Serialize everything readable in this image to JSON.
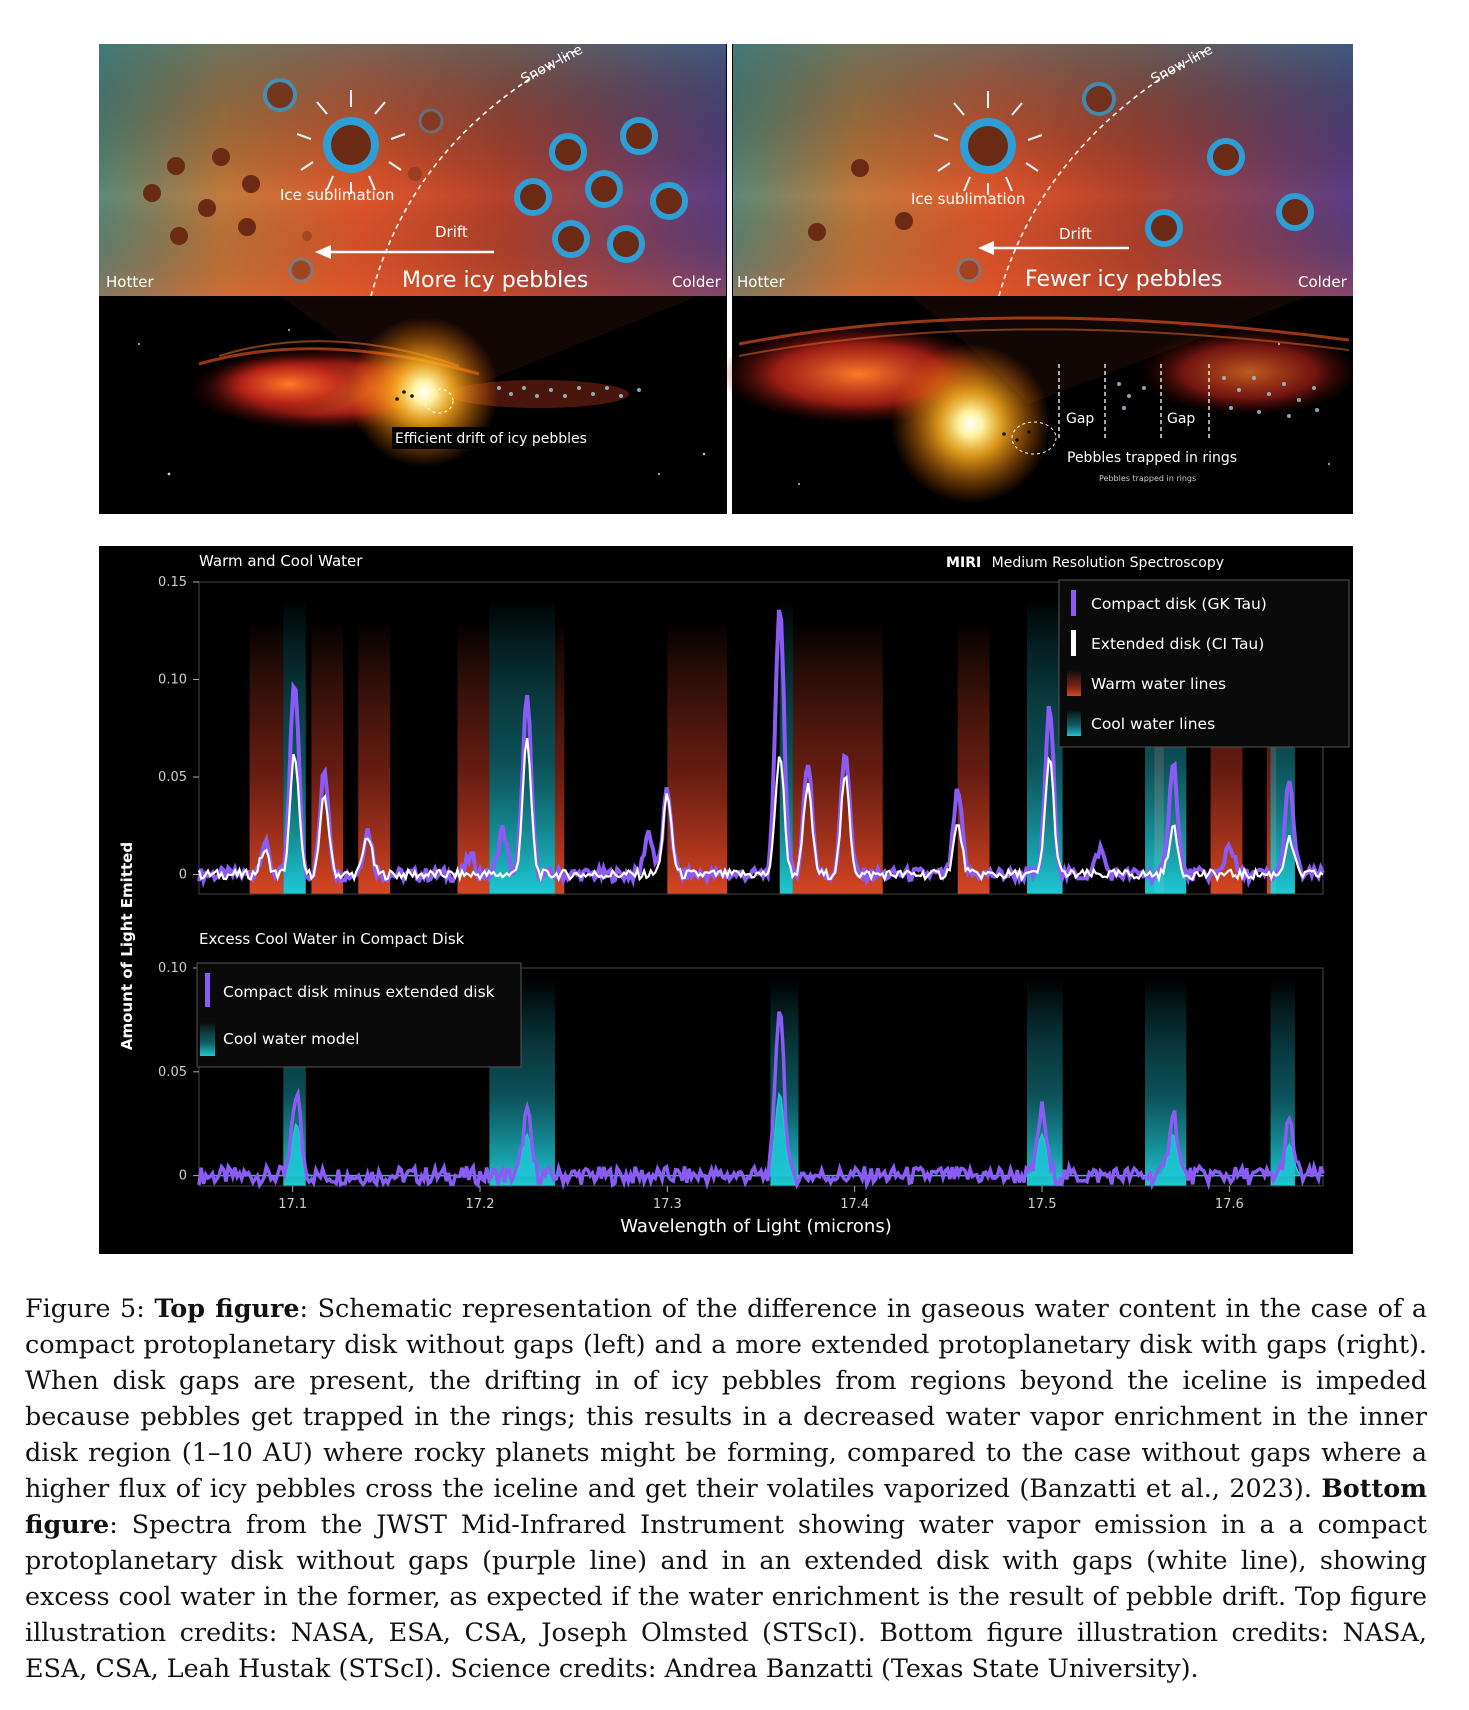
{
  "top_figure": {
    "left": {
      "snow_line": "Snow line",
      "ice_sublimation": "Ice sublimation",
      "drift": "Drift",
      "hotter": "Hotter",
      "colder": "Colder",
      "pebbles": "More icy pebbles",
      "drift_label": "Efficient drift of icy pebbles"
    },
    "right": {
      "snow_line": "Snow line",
      "ice_sublimation": "Ice sublimation",
      "drift": "Drift",
      "hotter": "Hotter",
      "colder": "Colder",
      "pebbles": "Fewer icy pebbles",
      "gap1": "Gap",
      "gap2": "Gap",
      "trapped_label": "Pebbles trapped in rings",
      "trapped_small": "Pebbles trapped in rings"
    },
    "colors": {
      "warm": "#d8472a",
      "cool_ring": "#2d9fd6",
      "pebble": "#6a2a14"
    }
  },
  "chart_data": [
    {
      "type": "line",
      "title": "Warm and Cool Water",
      "instrument_bold": "MIRI",
      "instrument_rest": "Medium Resolution Spectroscopy",
      "ylabel": "Amount of Light Emitted",
      "ylim": [
        -0.01,
        0.15
      ],
      "xlim": [
        17.05,
        17.65
      ],
      "yticks": [
        {
          "v": 0,
          "label": "0"
        },
        {
          "v": 0.05,
          "label": "0.05"
        },
        {
          "v": 0.1,
          "label": "0.10"
        },
        {
          "v": 0.15,
          "label": "0.15"
        }
      ],
      "legend": [
        {
          "label": "Compact disk (GK Tau)",
          "color": "#8a5cf5"
        },
        {
          "label": "Extended disk (CI Tau)",
          "color": "#ffffff"
        },
        {
          "label": "Warm water lines",
          "color": "#d8472a"
        },
        {
          "label": "Cool water lines",
          "color": "#1fc7d4"
        }
      ],
      "warm_bands": [
        [
          17.077,
          17.095
        ],
        [
          17.11,
          17.127
        ],
        [
          17.135,
          17.152
        ],
        [
          17.188,
          17.205
        ],
        [
          17.24,
          17.245
        ],
        [
          17.3,
          17.332
        ],
        [
          17.367,
          17.415
        ],
        [
          17.455,
          17.472
        ],
        [
          17.56,
          17.565
        ],
        [
          17.59,
          17.607
        ],
        [
          17.62,
          17.625
        ]
      ],
      "cool_bands": [
        [
          17.095,
          17.107
        ],
        [
          17.205,
          17.24
        ],
        [
          17.36,
          17.367
        ],
        [
          17.492,
          17.511
        ],
        [
          17.555,
          17.577
        ],
        [
          17.622,
          17.635
        ]
      ],
      "series": [
        {
          "name": "Compact disk (GK Tau)",
          "color": "#8a5cf5",
          "baseline": 0.0,
          "peaks": [
            [
              17.085,
              0.016
            ],
            [
              17.101,
              0.1
            ],
            [
              17.117,
              0.053
            ],
            [
              17.14,
              0.023
            ],
            [
              17.195,
              0.009
            ],
            [
              17.212,
              0.023
            ],
            [
              17.225,
              0.09
            ],
            [
              17.29,
              0.022
            ],
            [
              17.3,
              0.042
            ],
            [
              17.36,
              0.14
            ],
            [
              17.375,
              0.058
            ],
            [
              17.395,
              0.064
            ],
            [
              17.455,
              0.042
            ],
            [
              17.504,
              0.085
            ],
            [
              17.531,
              0.013
            ],
            [
              17.57,
              0.058
            ],
            [
              17.6,
              0.016
            ],
            [
              17.632,
              0.046
            ]
          ]
        },
        {
          "name": "Extended disk (CI Tau)",
          "color": "#ffffff",
          "baseline": 0.0,
          "peaks": [
            [
              17.085,
              0.012
            ],
            [
              17.101,
              0.062
            ],
            [
              17.117,
              0.04
            ],
            [
              17.14,
              0.02
            ],
            [
              17.225,
              0.068
            ],
            [
              17.3,
              0.04
            ],
            [
              17.36,
              0.062
            ],
            [
              17.375,
              0.045
            ],
            [
              17.395,
              0.05
            ],
            [
              17.455,
              0.025
            ],
            [
              17.504,
              0.06
            ],
            [
              17.57,
              0.024
            ],
            [
              17.632,
              0.018
            ]
          ]
        }
      ],
      "legend_placement": "top-right"
    },
    {
      "type": "line",
      "title": "Excess Cool Water in Compact Disk",
      "xlabel": "Wavelength of Light (microns)",
      "ylim": [
        -0.005,
        0.1
      ],
      "xlim": [
        17.05,
        17.65
      ],
      "xticks": [
        {
          "v": 17.1,
          "label": "17.1"
        },
        {
          "v": 17.2,
          "label": "17.2"
        },
        {
          "v": 17.3,
          "label": "17.3"
        },
        {
          "v": 17.4,
          "label": "17.4"
        },
        {
          "v": 17.5,
          "label": "17.5"
        },
        {
          "v": 17.6,
          "label": "17.6"
        }
      ],
      "yticks": [
        {
          "v": 0,
          "label": "0"
        },
        {
          "v": 0.05,
          "label": "0.05"
        },
        {
          "v": 0.1,
          "label": "0.10"
        }
      ],
      "legend": [
        {
          "label": "Compact disk minus extended disk",
          "color": "#8a5cf5"
        },
        {
          "label": "Cool water model",
          "color": "#1fc7d4"
        }
      ],
      "cool_bands": [
        [
          17.095,
          17.107
        ],
        [
          17.205,
          17.24
        ],
        [
          17.355,
          17.37
        ],
        [
          17.492,
          17.511
        ],
        [
          17.555,
          17.577
        ],
        [
          17.622,
          17.635
        ]
      ],
      "series": [
        {
          "name": "Compact disk minus extended disk",
          "color": "#8a5cf5",
          "peaks": [
            [
              17.102,
              0.04
            ],
            [
              17.225,
              0.03
            ],
            [
              17.36,
              0.083
            ],
            [
              17.5,
              0.032
            ],
            [
              17.57,
              0.031
            ],
            [
              17.632,
              0.025
            ]
          ]
        },
        {
          "name": "Cool water model",
          "color": "#1fc7d4",
          "peaks": [
            [
              17.102,
              0.025
            ],
            [
              17.225,
              0.02
            ],
            [
              17.36,
              0.04
            ],
            [
              17.5,
              0.02
            ],
            [
              17.57,
              0.02
            ],
            [
              17.632,
              0.015
            ]
          ]
        }
      ],
      "legend_placement": "top-left"
    }
  ],
  "caption": {
    "label": "Figure 5:",
    "top_bold": "Top figure",
    "top_text": ": Schematic representation of the difference in gaseous water content in the case of a compact protoplanetary disk without gaps (left) and a more extended protoplanetary disk with gaps (right). When disk gaps are present, the drifting in of icy pebbles from regions beyond the iceline is impeded because pebbles get trapped in the rings; this results in a decreased water vapor enrichment in the inner disk region (1–10 AU) where rocky planets might be forming, compared to the case without gaps where a higher flux of icy pebbles cross the iceline and get their volatiles vaporized (Banzatti et al., 2023).",
    "bottom_bold": "Bottom figure",
    "bottom_text": ": Spectra from the JWST Mid-Infrared Instrument showing water vapor emission in a a compact protoplanetary disk without gaps (purple line) and in an extended disk with gaps (white line), showing excess cool water in the former, as expected if the water enrichment is the result of pebble drift. Top figure illustration credits: NASA, ESA, CSA, Joseph Olmsted (STScI). Bottom figure illustration credits: NASA, ESA, CSA, Leah Hustak (STScI). Science credits: Andrea Banzatti (Texas State University)."
  }
}
